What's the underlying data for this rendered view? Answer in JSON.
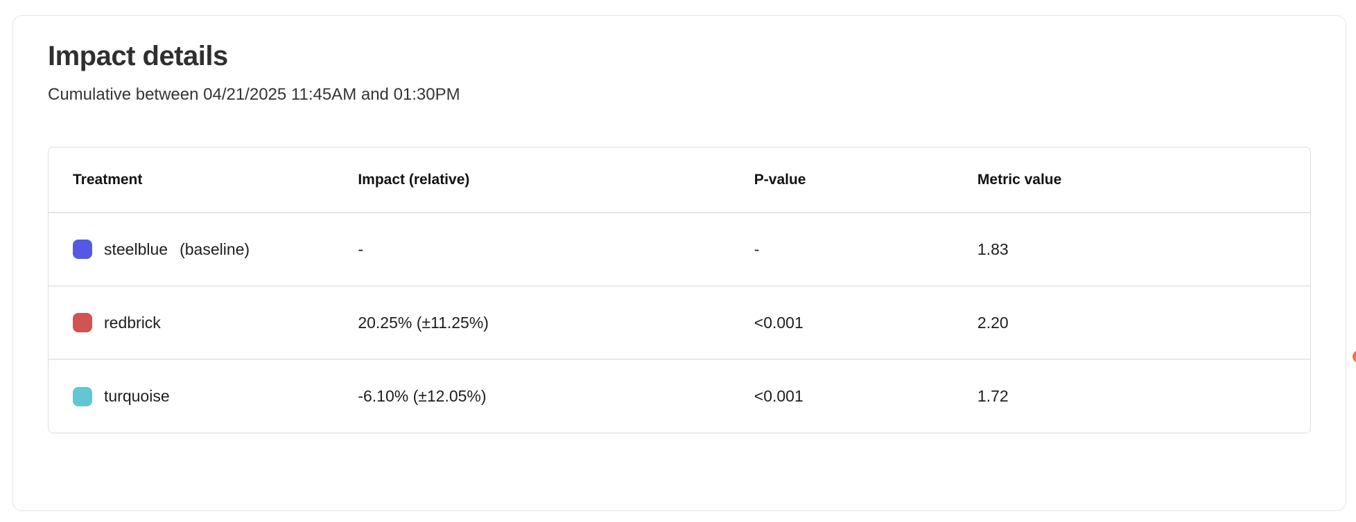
{
  "card": {
    "title": "Impact details",
    "subtitle": "Cumulative between 04/21/2025 11:45AM and 01:30PM"
  },
  "table": {
    "columns": [
      "Treatment",
      "Impact (relative)",
      "P-value",
      "Metric value"
    ],
    "rows": [
      {
        "swatch_color": "#5558e3",
        "name": "steelblue",
        "suffix": "(baseline)",
        "impact": "-",
        "p_value": "-",
        "metric_value": "1.83"
      },
      {
        "swatch_color": "#d15352",
        "name": "redbrick",
        "suffix": "",
        "impact": "20.25% (±11.25%)",
        "p_value": "<0.001",
        "metric_value": "2.20"
      },
      {
        "swatch_color": "#61c7d2",
        "name": "turquoise",
        "suffix": "",
        "impact": "-6.10% (±12.05%)",
        "p_value": "<0.001",
        "metric_value": "1.72"
      }
    ]
  },
  "edge_badge": {
    "color": "#f46f4e"
  }
}
